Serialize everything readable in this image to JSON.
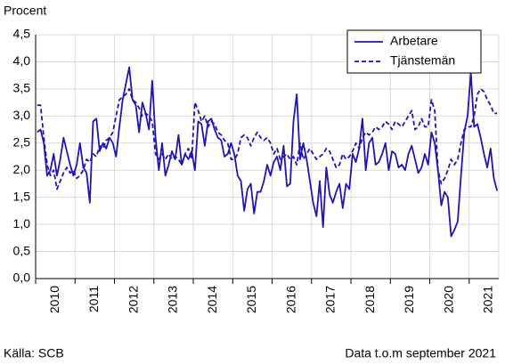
{
  "chart_data": {
    "type": "line",
    "y_label": "Procent",
    "source": "Källa: SCB",
    "note": "Data t.o.m september 2021",
    "categories": [
      null,
      null,
      null,
      null,
      null,
      "2010",
      null,
      null,
      null,
      null,
      null,
      null,
      null,
      null,
      null,
      null,
      null,
      "2011",
      null,
      null,
      null,
      null,
      null,
      null,
      null,
      null,
      null,
      null,
      null,
      "2012",
      null,
      null,
      null,
      null,
      null,
      null,
      null,
      null,
      null,
      null,
      null,
      "2013",
      null,
      null,
      null,
      null,
      null,
      null,
      null,
      null,
      null,
      null,
      null,
      "2014",
      null,
      null,
      null,
      null,
      null,
      null,
      null,
      null,
      null,
      null,
      null,
      "2015",
      null,
      null,
      null,
      null,
      null,
      null,
      null,
      null,
      null,
      null,
      null,
      "2016",
      null,
      null,
      null,
      null,
      null,
      null,
      null,
      null,
      null,
      null,
      null,
      "2017",
      null,
      null,
      null,
      null,
      null,
      null,
      null,
      null,
      null,
      null,
      null,
      "2018",
      null,
      null,
      null,
      null,
      null,
      null,
      null,
      null,
      null,
      null,
      null,
      "2019",
      null,
      null,
      null,
      null,
      null,
      null,
      null,
      null,
      null,
      null,
      null,
      "2020",
      null,
      null,
      null,
      null,
      null,
      null,
      null,
      null,
      null,
      null,
      null,
      "2021",
      null,
      null,
      null
    ],
    "series": [
      {
        "name": "Arbetare",
        "color": "#1f14b4",
        "style": "solid",
        "values": [
          2.7,
          2.75,
          2.5,
          1.9,
          2.0,
          2.3,
          1.9,
          2.2,
          2.6,
          2.35,
          2.1,
          1.9,
          2.1,
          2.5,
          2.05,
          1.95,
          1.4,
          2.9,
          2.95,
          2.35,
          2.5,
          2.4,
          2.6,
          2.5,
          2.25,
          2.8,
          3.3,
          3.6,
          3.9,
          3.3,
          3.2,
          2.7,
          3.25,
          3.05,
          2.75,
          3.65,
          2.6,
          2.0,
          2.5,
          1.9,
          2.1,
          2.35,
          2.2,
          2.65,
          2.1,
          2.3,
          2.2,
          2.35,
          2.0,
          2.9,
          2.85,
          2.45,
          2.9,
          2.95,
          2.75,
          2.6,
          2.55,
          2.25,
          2.3,
          2.5,
          2.3,
          1.9,
          1.8,
          1.25,
          1.65,
          1.75,
          1.2,
          1.6,
          1.6,
          1.8,
          2.1,
          1.9,
          2.15,
          2.25,
          2.0,
          2.45,
          1.7,
          1.75,
          2.9,
          3.4,
          2.2,
          2.5,
          2.2,
          1.8,
          1.4,
          1.15,
          1.8,
          0.95,
          2.05,
          1.55,
          1.4,
          1.6,
          1.75,
          1.3,
          1.75,
          1.65,
          2.3,
          2.15,
          2.4,
          2.95,
          2.0,
          2.5,
          2.6,
          2.1,
          2.15,
          2.3,
          2.5,
          2.0,
          2.35,
          2.3,
          2.05,
          2.1,
          2.0,
          2.3,
          2.45,
          2.2,
          1.95,
          2.05,
          2.3,
          2.1,
          2.7,
          2.5,
          2.0,
          1.35,
          1.6,
          1.5,
          0.78,
          0.9,
          1.05,
          1.9,
          2.7,
          3.0,
          3.8,
          2.8,
          2.85,
          2.6,
          2.3,
          2.05,
          2.4,
          1.85,
          1.62
        ]
      },
      {
        "name": "Tjänstemän",
        "color": "#1f14b4",
        "style": "dashed",
        "values": [
          3.2,
          3.2,
          2.6,
          2.1,
          1.9,
          2.0,
          1.65,
          1.8,
          1.95,
          2.05,
          1.95,
          2.0,
          1.85,
          1.9,
          2.0,
          2.2,
          2.15,
          2.3,
          2.25,
          2.45,
          2.4,
          2.55,
          2.6,
          2.7,
          3.0,
          3.3,
          3.35,
          3.4,
          3.5,
          3.3,
          3.25,
          3.15,
          3.0,
          3.05,
          3.0,
          2.9,
          2.3,
          2.2,
          2.3,
          2.2,
          2.3,
          2.2,
          2.25,
          2.2,
          2.1,
          2.3,
          2.4,
          2.2,
          3.25,
          3.1,
          2.9,
          3.0,
          2.8,
          2.9,
          2.85,
          2.7,
          2.65,
          2.55,
          2.5,
          2.2,
          2.2,
          2.3,
          2.6,
          2.65,
          2.6,
          2.45,
          2.6,
          2.7,
          2.6,
          2.55,
          2.6,
          2.5,
          2.3,
          2.4,
          2.2,
          2.25,
          2.3,
          2.2,
          2.25,
          2.1,
          2.5,
          2.2,
          2.3,
          2.4,
          2.3,
          2.2,
          2.25,
          2.3,
          2.4,
          2.35,
          2.2,
          2.05,
          2.1,
          2.3,
          2.2,
          2.25,
          2.35,
          2.5,
          2.4,
          2.6,
          2.7,
          2.65,
          2.7,
          2.8,
          2.75,
          2.8,
          2.9,
          2.85,
          2.75,
          2.9,
          2.85,
          2.8,
          2.9,
          3.0,
          3.1,
          2.75,
          2.8,
          2.95,
          2.8,
          2.8,
          3.3,
          3.1,
          2.0,
          1.75,
          1.85,
          2.0,
          2.2,
          2.1,
          2.2,
          2.5,
          2.75,
          2.8,
          2.8,
          3.0,
          3.4,
          3.5,
          3.45,
          3.3,
          3.2,
          3.05,
          3.05
        ]
      }
    ],
    "ylim": [
      0,
      4.5
    ],
    "yticks": [
      {
        "value": 0,
        "label": "0,0"
      },
      {
        "value": 0.5,
        "label": "0,5"
      },
      {
        "value": 1,
        "label": "1,0"
      },
      {
        "value": 1.5,
        "label": "1,5"
      },
      {
        "value": 2,
        "label": "2,0"
      },
      {
        "value": 2.5,
        "label": "2,5"
      },
      {
        "value": 3,
        "label": "3,0"
      },
      {
        "value": 3.5,
        "label": "3,5"
      },
      {
        "value": 4,
        "label": "4,0"
      },
      {
        "value": 4.5,
        "label": "4,5"
      }
    ],
    "grid": true,
    "legend": "upper right"
  }
}
